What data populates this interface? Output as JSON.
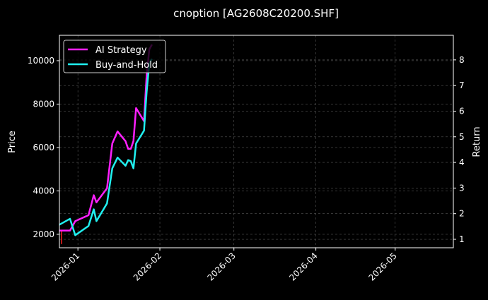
{
  "chart_data": {
    "type": "line",
    "title": "cnoption [AG2608C20200.SHF]",
    "ylabel": "Price",
    "y2label": "Return",
    "xlim": [
      "2025-12-25",
      "2026-05-23"
    ],
    "ylim": [
      1380,
      11170
    ],
    "y2lim": [
      0.67,
      8.96
    ],
    "x_ticks": [
      "2026-01",
      "2026-02",
      "2026-03",
      "2026-04",
      "2026-05"
    ],
    "x_tick_dates": [
      "2026-01-01",
      "2026-02-01",
      "2026-03-01",
      "2026-04-01",
      "2026-05-01"
    ],
    "y_ticks": [
      2000,
      4000,
      6000,
      8000,
      10000
    ],
    "y2_ticks": [
      1,
      2,
      3,
      4,
      5,
      6,
      7,
      8
    ],
    "grid": true,
    "legend": "top-left",
    "dates": [
      "2025-12-25",
      "2025-12-29",
      "2025-12-31",
      "2026-01-05",
      "2026-01-07",
      "2026-01-08",
      "2026-01-12",
      "2026-01-14",
      "2026-01-16",
      "2026-01-19",
      "2026-01-20",
      "2026-01-21",
      "2026-01-22",
      "2026-01-23",
      "2026-01-26",
      "2026-01-27",
      "2026-01-28",
      "2026-01-29"
    ],
    "price": {
      "dates": [
        "2025-12-25",
        "2025-12-25"
      ],
      "values": [
        2150,
        1550
      ],
      "color": "#ff2020"
    },
    "series": [
      {
        "name": "AI Strategy",
        "axis": "right",
        "color": "#ff20ff",
        "values": [
          1.34,
          1.34,
          1.71,
          1.94,
          2.72,
          2.44,
          2.99,
          4.74,
          5.21,
          4.83,
          4.53,
          4.53,
          4.83,
          6.12,
          5.61,
          7.4,
          8.41,
          8.6
        ]
      },
      {
        "name": "Buy-and-Hold",
        "axis": "right",
        "color": "#20f0f0",
        "values": [
          1.57,
          1.8,
          1.16,
          1.52,
          2.17,
          1.71,
          2.4,
          3.77,
          4.19,
          3.87,
          4.09,
          4.05,
          3.77,
          4.74,
          5.24,
          6.76,
          7.86,
          8.04
        ]
      }
    ]
  }
}
